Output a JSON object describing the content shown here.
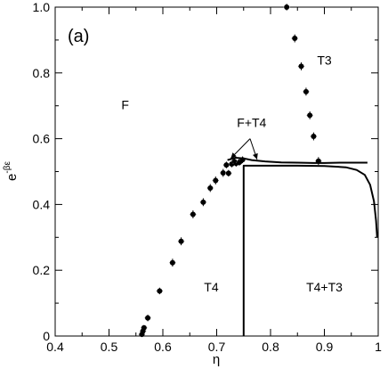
{
  "chart_data": {
    "type": "scatter",
    "panel_label": "(a)",
    "xlabel": "η",
    "ylabel_base": "e",
    "ylabel_exponent": "-βε",
    "xlim": [
      0.4,
      1.0
    ],
    "ylim": [
      0.0,
      1.0
    ],
    "xticks": [
      "0.4",
      "0.5",
      "0.6",
      "0.7",
      "0.8",
      "0.9",
      "1"
    ],
    "yticks": [
      "0",
      "0.2",
      "0.4",
      "0.6",
      "0.8",
      "1.0"
    ],
    "grid": false,
    "region_labels": [
      {
        "text": "F",
        "x": 0.53,
        "y": 0.69
      },
      {
        "text": "F+T4",
        "x": 0.765,
        "y": 0.635
      },
      {
        "text": "T3",
        "x": 0.9,
        "y": 0.825
      },
      {
        "text": "T4",
        "x": 0.69,
        "y": 0.135
      },
      {
        "text": "T4+T3",
        "x": 0.9,
        "y": 0.135
      }
    ],
    "annotation_arrows": {
      "origin": [
        0.762,
        0.6
      ],
      "targets": [
        [
          0.726,
          0.54
        ],
        [
          0.775,
          0.537
        ]
      ]
    },
    "series": [
      {
        "marker": "circle",
        "x": [
          0.561,
          0.563,
          0.565,
          0.572,
          0.594,
          0.618,
          0.634,
          0.656,
          0.675,
          0.688,
          0.698,
          0.712,
          0.718,
          0.722,
          0.728,
          0.733,
          0.736,
          0.742,
          0.744,
          0.748,
          0.83,
          0.845,
          0.857,
          0.866,
          0.873,
          0.88,
          0.889
        ],
        "y": [
          0.005,
          0.015,
          0.025,
          0.055,
          0.137,
          0.223,
          0.288,
          0.37,
          0.407,
          0.45,
          0.473,
          0.496,
          0.52,
          0.495,
          0.523,
          0.53,
          0.525,
          0.528,
          0.531,
          0.536,
          1.0,
          0.905,
          0.82,
          0.743,
          0.671,
          0.607,
          0.532
        ],
        "yerr": [
          0.008,
          0.008,
          0.008,
          0.01,
          0.01,
          0.012,
          0.012,
          0.012,
          0.012,
          0.012,
          0.012,
          0.012,
          0.01,
          0.01,
          0.01,
          0.01,
          0.01,
          0.01,
          0.01,
          0.01,
          0.01,
          0.012,
          0.012,
          0.012,
          0.012,
          0.012,
          0.012
        ],
        "xerr": [
          0.006,
          0.006,
          0.006,
          0.006,
          0.006,
          0.006,
          0.006,
          0.006,
          0.006,
          0.006,
          0.006,
          0.006,
          0.006,
          0.006,
          0.006,
          0.006,
          0.006,
          0.006,
          0.006,
          0.006,
          0.006,
          0.006,
          0.006,
          0.006,
          0.006,
          0.006,
          0.006
        ]
      }
    ],
    "lines": [
      {
        "kind": "f-t4-boundary",
        "x": [
          0.72,
          0.735,
          0.75,
          0.765,
          0.79,
          0.82,
          0.85,
          0.88,
          0.9,
          0.93,
          0.96,
          0.98
        ],
        "y": [
          0.535,
          0.542,
          0.54,
          0.535,
          0.531,
          0.528,
          0.527,
          0.526,
          0.526,
          0.527,
          0.527,
          0.527
        ]
      },
      {
        "kind": "t4-t3-boundary",
        "x": [
          0.75,
          0.75,
          0.8,
          0.85,
          0.9,
          0.94,
          0.96,
          0.975,
          0.985,
          0.992,
          0.996,
          0.998
        ],
        "y": [
          0.0,
          0.518,
          0.518,
          0.518,
          0.517,
          0.513,
          0.505,
          0.49,
          0.46,
          0.41,
          0.35,
          0.3
        ]
      }
    ]
  }
}
